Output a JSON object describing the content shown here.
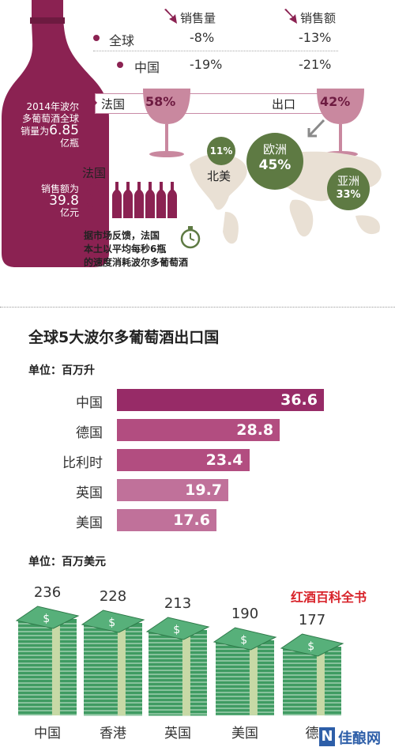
{
  "colors": {
    "wine": "#8b2252",
    "wine_light": "#b0507b",
    "bar_dark": "#972b67",
    "bar_mid": "#b24d80",
    "bar_light": "#c0719a",
    "region_green": "#5e7a43",
    "map_beige": "#e9e0d4",
    "money_green": "#3f9b62",
    "money_band": "#c7d9a6",
    "red_text": "#d8232a"
  },
  "bottle": {
    "line1": "2014年波尔",
    "line2": "多葡萄酒全球",
    "line3a": "销量为",
    "line3b": "6.85",
    "line4": "亿瓶",
    "line5": "销售额为",
    "line6": "39.8",
    "line7": "亿元"
  },
  "stats": {
    "head_volume": "销售量",
    "head_value": "销售额",
    "rows": [
      {
        "label": "全球",
        "volume": "-8%",
        "value": "-13%"
      },
      {
        "label": "中国",
        "volume": "-19%",
        "value": "-21%"
      }
    ]
  },
  "export": {
    "france_label": "法国",
    "france_pct": "58%",
    "export_label": "出口",
    "export_pct": "42%"
  },
  "regions": [
    {
      "name": "北美",
      "pct": "11%"
    },
    {
      "name": "欧洲",
      "pct": "45%"
    },
    {
      "name": "亚洲",
      "pct": "33%"
    }
  ],
  "france_consume": {
    "title": "法国",
    "number": "6",
    "line1": "据市场反馈，法国",
    "line2": "本土以平均每秒6瓶",
    "line3": "的速度消耗波尔多葡萄酒"
  },
  "chart_data": [
    {
      "type": "bar",
      "title": "全球5大波尔多葡萄酒出口国",
      "unit": "单位：百万升",
      "categories": [
        "中国",
        "德国",
        "比利时",
        "英国",
        "美国"
      ],
      "values": [
        36.6,
        28.8,
        23.4,
        19.7,
        17.6
      ],
      "orientation": "horizontal"
    },
    {
      "type": "bar",
      "unit": "单位：百万美元",
      "categories": [
        "中国",
        "香港",
        "英国",
        "美国",
        "德"
      ],
      "values": [
        236,
        228,
        213,
        190,
        177
      ]
    }
  ],
  "brand": "红酒百科全书",
  "watermark": {
    "logo_letter": "N",
    "text": "佳酿网"
  }
}
